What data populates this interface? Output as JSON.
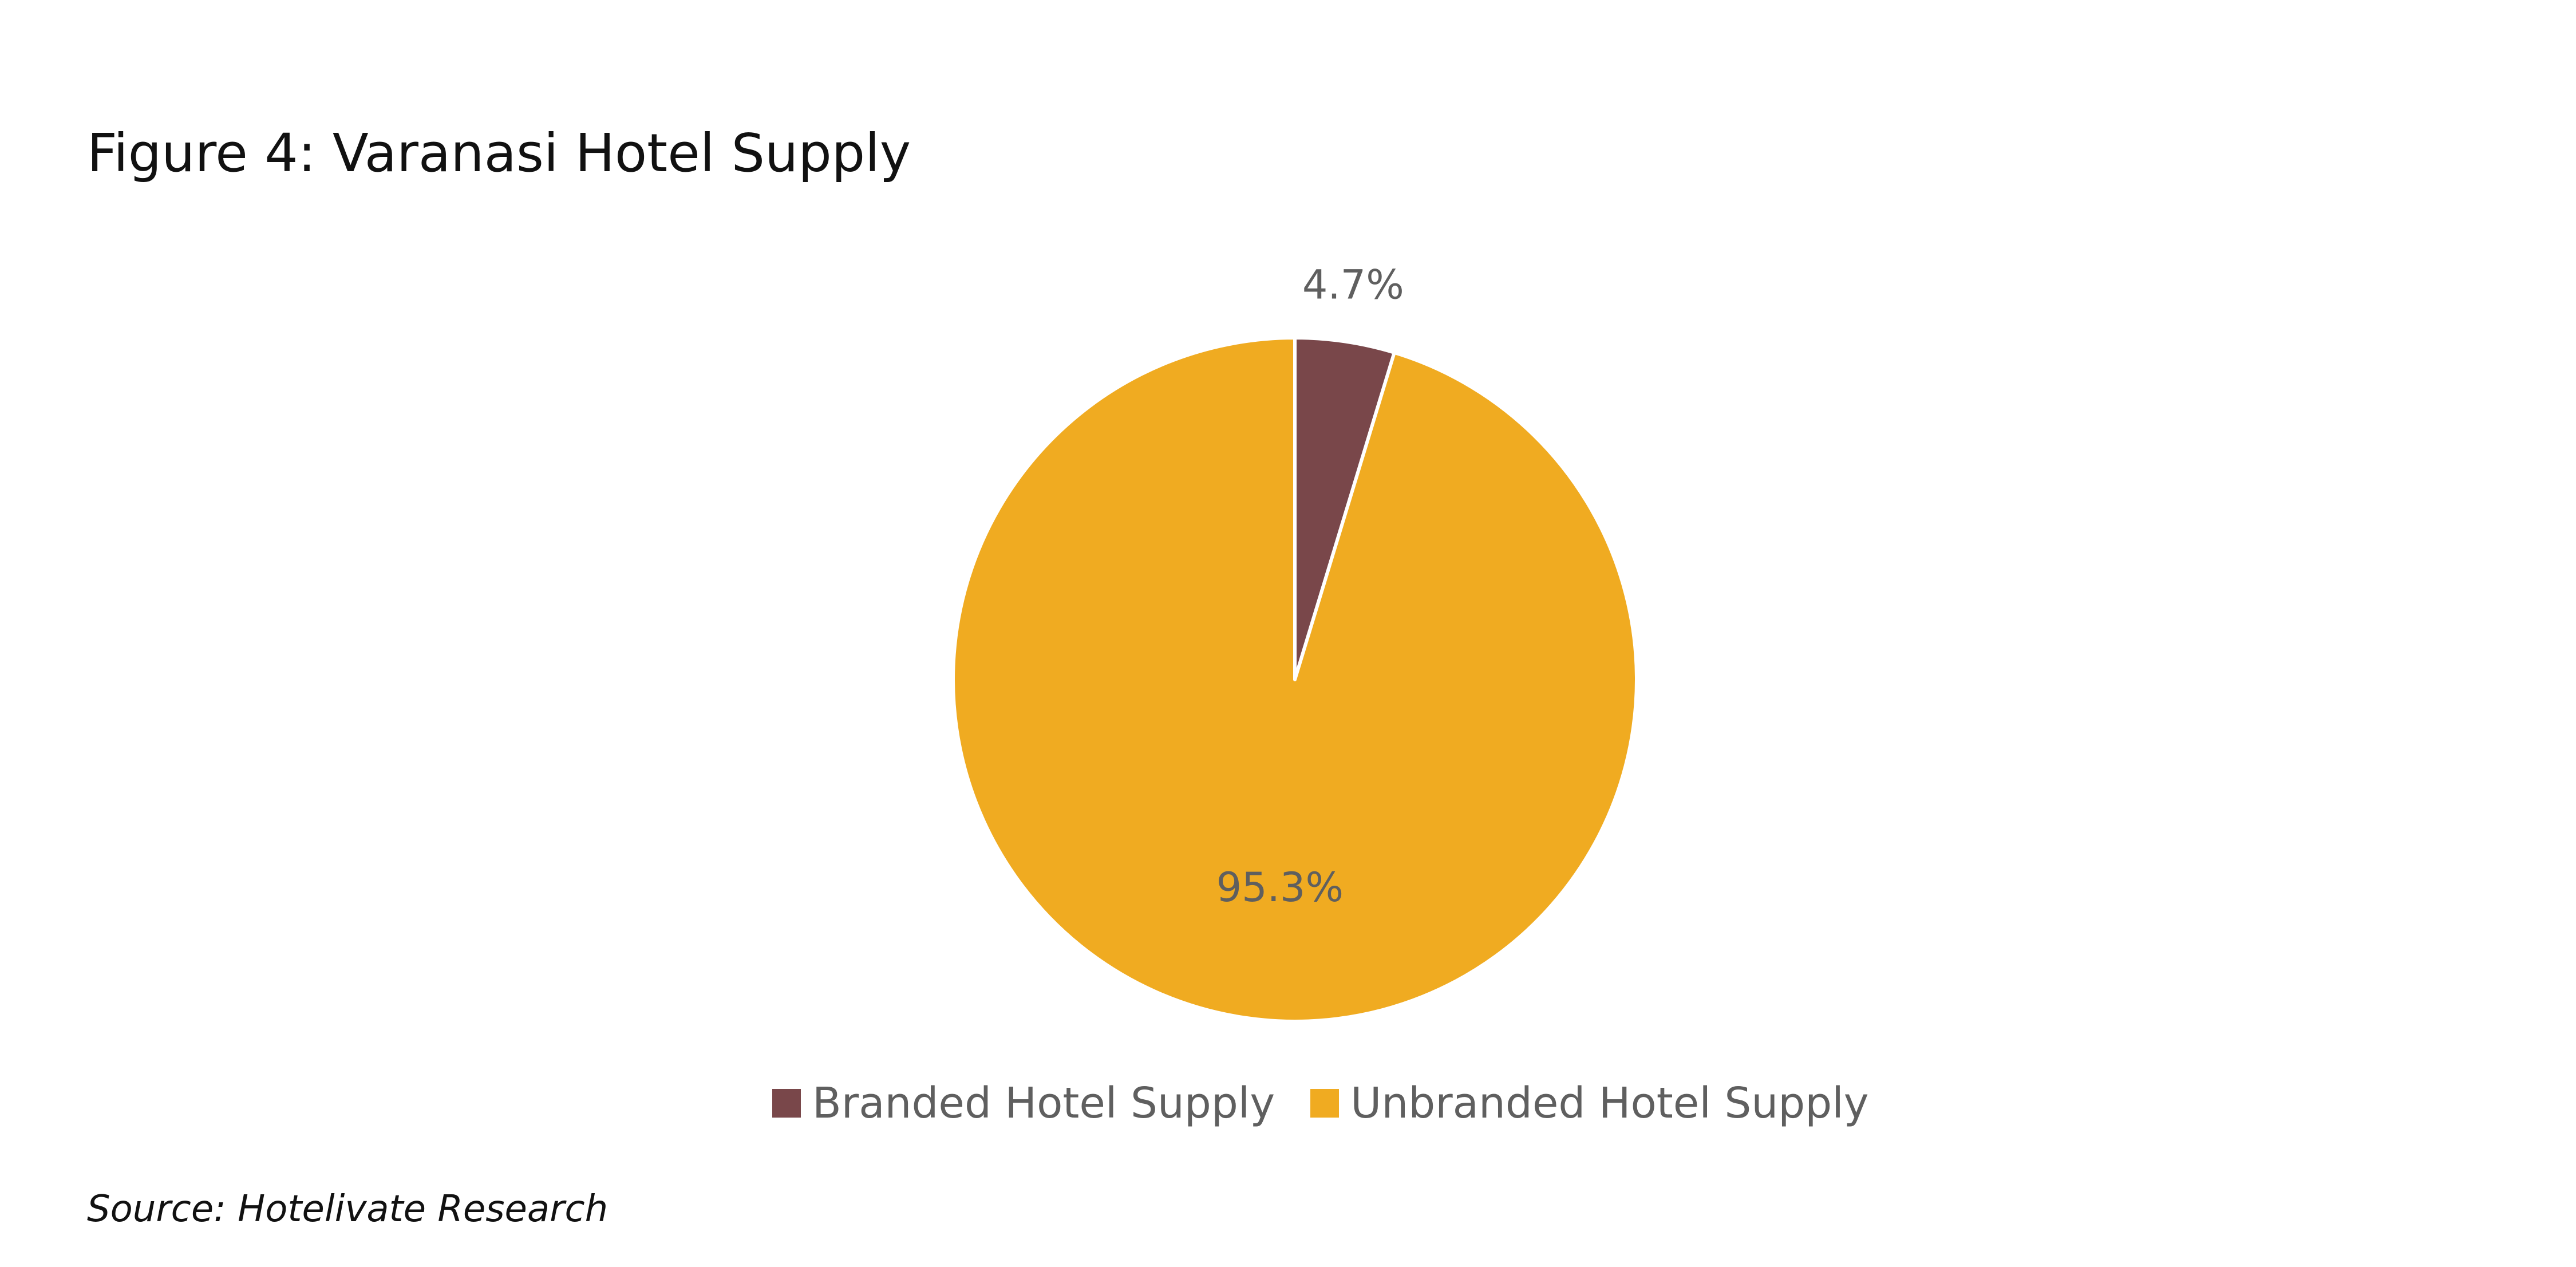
{
  "figure": {
    "title": "Figure 4: Varanasi Hotel Supply",
    "source": "Source: Hotelivate Research"
  },
  "chart_data": {
    "type": "pie",
    "categories": [
      "Branded Hotel Supply",
      "Unbranded Hotel Supply"
    ],
    "values": [
      4.7,
      95.3
    ],
    "unit": "%",
    "data_labels": [
      "4.7%",
      "95.3%"
    ],
    "colors": [
      "#79474A",
      "#F0AB21"
    ],
    "start_angle": "12 o'clock",
    "direction": "clockwise",
    "legend": "bottom"
  }
}
